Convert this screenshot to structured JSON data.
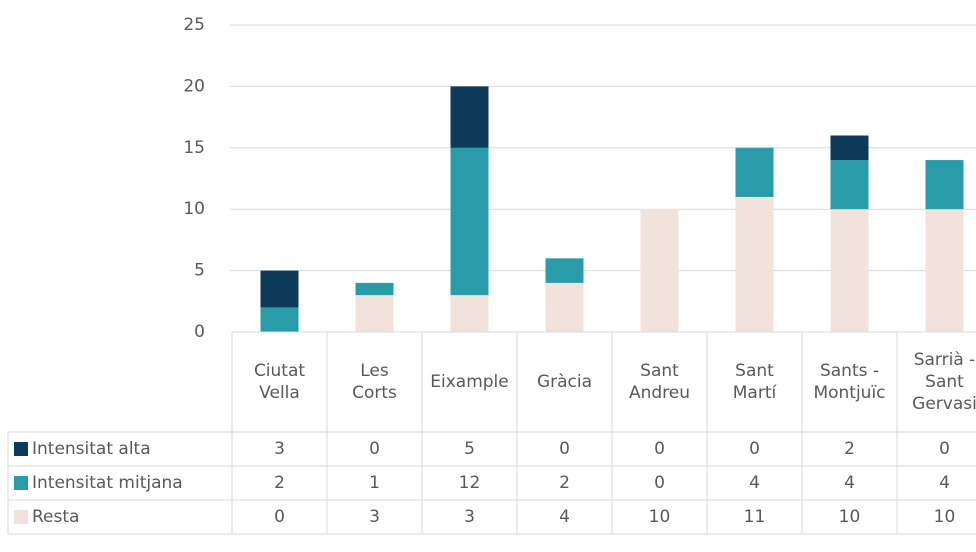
{
  "chart_data": {
    "type": "bar",
    "stacked": true,
    "categories": [
      "Ciutat Vella",
      "Les Corts",
      "Eixample",
      "Gràcia",
      "Sant Andreu",
      "Sant Martí",
      "Sants - Montjuïc",
      "Sarrià - Sant Gervasi"
    ],
    "series": [
      {
        "name": "Intensitat alta",
        "color": "#0e3a5a",
        "values": [
          3,
          0,
          5,
          0,
          0,
          0,
          2,
          0
        ]
      },
      {
        "name": "Intensitat mitjana",
        "color": "#2a9ba8",
        "values": [
          2,
          1,
          12,
          2,
          0,
          4,
          4,
          4
        ]
      },
      {
        "name": "Resta",
        "color": "#f2e2dc",
        "values": [
          0,
          3,
          3,
          4,
          10,
          11,
          10,
          10
        ]
      }
    ],
    "ylim": [
      0,
      25
    ],
    "yticks": [
      0,
      5,
      10,
      15,
      20,
      25
    ],
    "grid": true,
    "data_table": true
  }
}
